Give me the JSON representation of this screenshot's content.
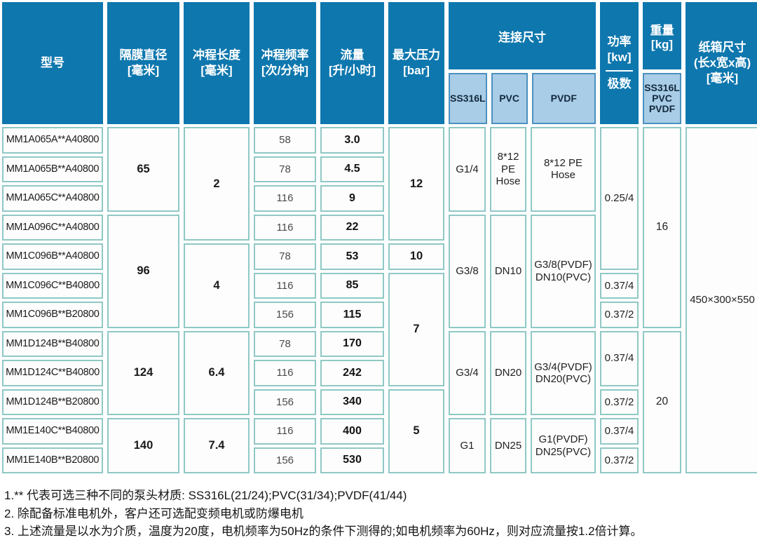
{
  "header": {
    "model": "型号",
    "diameter": {
      "title": "隔膜直径",
      "unit": "[毫米]"
    },
    "stroke": {
      "title": "冲程长度",
      "unit": "[毫米]"
    },
    "frequency": {
      "title": "冲程频率",
      "unit": "[次/分钟]"
    },
    "flow": {
      "title": "流量",
      "unit": "[升/小时]"
    },
    "pressure": {
      "title": "最大压力",
      "unit": "[bar]"
    },
    "connection": {
      "title": "连接尺寸",
      "sub": {
        "ss316l": "SS316L",
        "pvc": "PVC",
        "pvdf": "PVDF"
      }
    },
    "power": {
      "title": "功率",
      "unit": "[kw]",
      "sub": "极数"
    },
    "weight": {
      "title": "重量",
      "unit": "[kg]",
      "sub_l1": "SS316L",
      "sub_l2": "PVC",
      "sub_l3": "PVDF"
    },
    "carton": {
      "line1": "纸箱尺寸",
      "line2": "(长x宽x高)",
      "line3": "[毫米]"
    }
  },
  "body": {
    "models": [
      "MM1A065A**A40800",
      "MM1A065B**A40800",
      "MM1A065C**A40800",
      "MM1A096C**A40800",
      "MM1C096B**A40800",
      "MM1C096C**B40800",
      "MM1C096B**B20800",
      "MM1D124B**B40800",
      "MM1D124C**B40800",
      "MM1D124B**B20800",
      "MM1E140C**B40800",
      "MM1E140B**B20800"
    ],
    "frequency": [
      "58",
      "78",
      "116",
      "116",
      "78",
      "116",
      "156",
      "78",
      "116",
      "156",
      "116",
      "156"
    ],
    "flow": [
      "3.0",
      "4.5",
      "9",
      "22",
      "53",
      "85",
      "115",
      "170",
      "242",
      "340",
      "400",
      "530"
    ],
    "diameter": [
      "65",
      "96",
      "124",
      "140"
    ],
    "stroke": [
      "2",
      "4",
      "6.4",
      "7.4"
    ],
    "pressure": [
      "12",
      "10",
      "7",
      "5"
    ],
    "connection": [
      {
        "ss316l": "G1/4",
        "pvc": "8*12 PE Hose",
        "pvdf": "8*12 PE Hose"
      },
      {
        "ss316l": "G3/8",
        "pvc": "DN10",
        "pvdf": "G3/8(PVDF) DN10(PVC)"
      },
      {
        "ss316l": "G3/4",
        "pvc": "DN20",
        "pvdf": "G3/4(PVDF) DN20(PVC)"
      },
      {
        "ss316l": "G1",
        "pvc": "DN25",
        "pvdf": "G1(PVDF) DN25(PVC)"
      }
    ],
    "power": [
      "0.25/4",
      "0.37/4",
      "0.37/2",
      "0.37/4",
      "0.37/2",
      "0.37/4",
      "0.37/2"
    ],
    "weight": [
      "16",
      "20"
    ],
    "carton": "450×300×550"
  },
  "notes": [
    "1.** 代表可选三种不同的泵头材质: SS316L(21/24);PVC(31/34);PVDF(41/44)",
    "2. 除配备标准电机外，客户还可选配变频电机或防爆电机",
    "3. 上述流量是以水为介质，温度为20度，电机频率为50Hz的条件下测得的;如电机频率为60Hz，则对应流量按1.2倍计算。"
  ],
  "colors": {
    "header_blue": "#0e77ae",
    "subheader_blue": "#a9cde7",
    "cell_border": "#8fc8c5"
  }
}
